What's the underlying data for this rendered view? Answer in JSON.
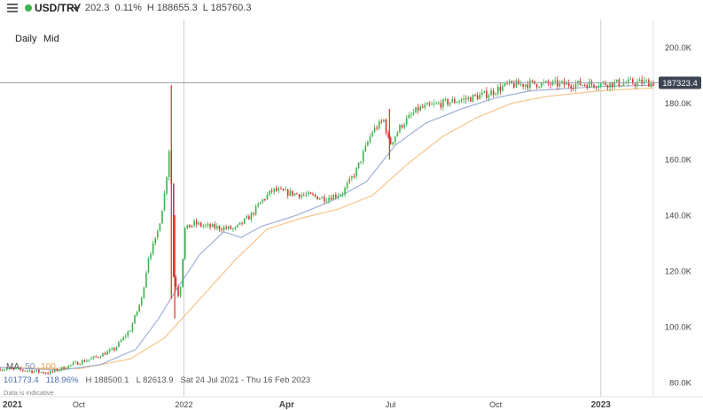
{
  "header": {
    "symbol": "USD/TRY",
    "last": "202.3",
    "change": "0.11%",
    "high": "H 188655.3",
    "low": "L 185760.3"
  },
  "toolbar": {
    "interval_label": "Daily",
    "price_type_label": "Mid"
  },
  "ma_legend": {
    "label": "MA",
    "ma50": "50",
    "ma100": "100"
  },
  "stats": {
    "ma50_value": "101773.4",
    "change_pct": "118.96%",
    "high": "H 188500.1",
    "low": "L 82613.9",
    "range": "Sat 24 Jul 2021 - Thu 16 Feb 2023"
  },
  "note": "Data is indicative",
  "colors": {
    "up": "#3bb54a",
    "down": "#d9312b",
    "ma50": "#9fb0d6",
    "ma100": "#f6c48a",
    "price_line": "#9aa3ad",
    "price_tag": "#3c4654"
  },
  "chart_data": {
    "type": "candlestick",
    "instrument": "USD/TRY",
    "interval": "Daily",
    "current_price_label": "187323.4",
    "current_price": 187323.4,
    "ylim": [
      75000,
      210000
    ],
    "y_ticks": [
      {
        "value": 80000,
        "label": "80.0K"
      },
      {
        "value": 100000,
        "label": "100.0K"
      },
      {
        "value": 120000,
        "label": "120.0K"
      },
      {
        "value": 140000,
        "label": "140.0K"
      },
      {
        "value": 160000,
        "label": "160.0K"
      },
      {
        "value": 180000,
        "label": "180.0K"
      },
      {
        "value": 200000,
        "label": "200.0K"
      }
    ],
    "x_range": [
      "2021-07-24",
      "2023-02-16"
    ],
    "x_ticks": [
      {
        "date": "2021-07-26",
        "label": "2021"
      },
      {
        "date": "2021-10-01",
        "label": "Oct"
      },
      {
        "date": "2022-01-01",
        "label": "2022"
      },
      {
        "date": "2022-04-01",
        "label": "Apr"
      },
      {
        "date": "2022-07-01",
        "label": "Jul"
      },
      {
        "date": "2022-10-01",
        "label": "Oct"
      },
      {
        "date": "2023-01-01",
        "label": "2023"
      }
    ],
    "vertical_markers": [
      "2022-01-01",
      "2023-01-01"
    ],
    "price_path": [
      [
        "2021-07-24",
        85000
      ],
      [
        "2021-08-15",
        84500
      ],
      [
        "2021-09-05",
        83500
      ],
      [
        "2021-09-25",
        86500
      ],
      [
        "2021-10-15",
        89000
      ],
      [
        "2021-11-01",
        92000
      ],
      [
        "2021-11-15",
        99000
      ],
      [
        "2021-11-25",
        110000
      ],
      [
        "2021-12-01",
        125000
      ],
      [
        "2021-12-08",
        132000
      ],
      [
        "2021-12-12",
        140000
      ],
      [
        "2021-12-16",
        150000
      ],
      [
        "2021-12-20",
        168000
      ],
      [
        "2021-12-23",
        118000
      ],
      [
        "2021-12-28",
        110000
      ],
      [
        "2022-01-02",
        135000
      ],
      [
        "2022-01-10",
        137000
      ],
      [
        "2022-01-20",
        136000
      ],
      [
        "2022-02-01",
        135500
      ],
      [
        "2022-02-15",
        135000
      ],
      [
        "2022-03-01",
        140000
      ],
      [
        "2022-03-10",
        145000
      ],
      [
        "2022-03-20",
        149000
      ],
      [
        "2022-04-01",
        148000
      ],
      [
        "2022-04-20",
        147000
      ],
      [
        "2022-05-05",
        146000
      ],
      [
        "2022-05-20",
        148000
      ],
      [
        "2022-06-01",
        156000
      ],
      [
        "2022-06-15",
        170000
      ],
      [
        "2022-06-25",
        174000
      ],
      [
        "2022-06-30",
        165000
      ],
      [
        "2022-07-10",
        172000
      ],
      [
        "2022-07-25",
        178000
      ],
      [
        "2022-08-15",
        180000
      ],
      [
        "2022-09-05",
        181500
      ],
      [
        "2022-09-25",
        183500
      ],
      [
        "2022-10-10",
        186500
      ],
      [
        "2022-11-01",
        187000
      ],
      [
        "2022-12-01",
        186800
      ],
      [
        "2023-01-01",
        187000
      ],
      [
        "2023-02-10",
        187500
      ],
      [
        "2023-02-16",
        187323
      ]
    ],
    "spikes": [
      {
        "date": "2021-12-21",
        "high": 186500,
        "low": 110000
      },
      {
        "date": "2021-12-24",
        "high": 140000,
        "low": 103000
      },
      {
        "date": "2022-06-30",
        "high": 178000,
        "low": 160000
      }
    ],
    "ma50": [
      [
        "2021-07-24",
        85500
      ],
      [
        "2021-09-15",
        84500
      ],
      [
        "2021-10-20",
        86500
      ],
      [
        "2021-11-20",
        92000
      ],
      [
        "2021-12-10",
        103000
      ],
      [
        "2021-12-25",
        113000
      ],
      [
        "2022-01-15",
        126000
      ],
      [
        "2022-02-05",
        134000
      ],
      [
        "2022-02-20",
        132000
      ],
      [
        "2022-03-10",
        136000
      ],
      [
        "2022-04-10",
        140000
      ],
      [
        "2022-05-10",
        145000
      ],
      [
        "2022-06-10",
        152000
      ],
      [
        "2022-07-05",
        165000
      ],
      [
        "2022-08-01",
        173000
      ],
      [
        "2022-09-01",
        178000
      ],
      [
        "2022-10-01",
        182000
      ],
      [
        "2022-11-01",
        184500
      ],
      [
        "2023-01-01",
        186000
      ],
      [
        "2023-02-16",
        186500
      ]
    ],
    "ma100": [
      [
        "2021-07-24",
        85500
      ],
      [
        "2021-10-01",
        85000
      ],
      [
        "2021-11-15",
        88500
      ],
      [
        "2021-12-15",
        96000
      ],
      [
        "2022-01-15",
        110000
      ],
      [
        "2022-02-15",
        124000
      ],
      [
        "2022-03-15",
        135000
      ],
      [
        "2022-04-15",
        139000
      ],
      [
        "2022-05-15",
        142000
      ],
      [
        "2022-06-15",
        147000
      ],
      [
        "2022-07-15",
        158000
      ],
      [
        "2022-08-15",
        168000
      ],
      [
        "2022-09-15",
        175000
      ],
      [
        "2022-10-15",
        180000
      ],
      [
        "2022-11-15",
        182500
      ],
      [
        "2023-01-01",
        184500
      ],
      [
        "2023-02-16",
        185500
      ]
    ]
  }
}
